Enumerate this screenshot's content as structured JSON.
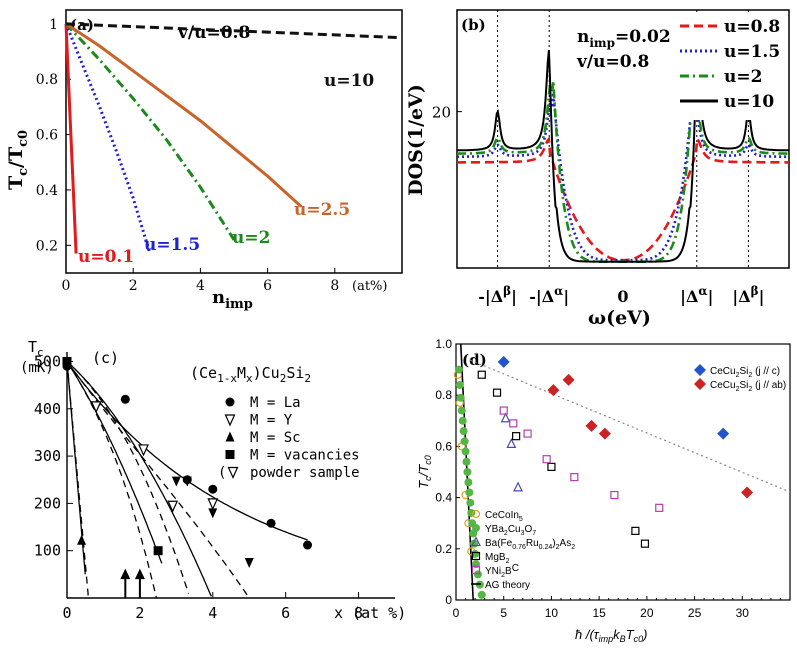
{
  "chart_data": [
    {
      "type": "line",
      "panel_label": "(a)",
      "xlabel": "n",
      "xlabel_sub": "imp",
      "ylabel": "T",
      "ylabel_sub": "c",
      "ylabel_sep": "/T",
      "ylabel_sub2": "c0",
      "x_unit": "(at%)",
      "header": "v/u=0.8",
      "xlim": [
        0,
        10
      ],
      "ylim": [
        0.1,
        1.05
      ],
      "xticks": [
        "0",
        "2",
        "4",
        "6",
        "8"
      ],
      "yticks": [
        "0.2",
        "0.4",
        "0.6",
        "0.8",
        "1"
      ],
      "xtick_values": [
        0,
        2,
        4,
        6,
        8
      ],
      "ytick_values": [
        0.2,
        0.4,
        0.6,
        0.8,
        1.0
      ],
      "series": [
        {
          "name": "u=0.1",
          "color": "#e31a1c",
          "dash": "solid",
          "x": [
            0,
            0.1,
            0.2,
            0.3
          ],
          "y": [
            1.0,
            0.72,
            0.45,
            0.17
          ]
        },
        {
          "name": "u=1.5",
          "color": "#1f1fd6",
          "dash": "dot",
          "x": [
            0,
            0.5,
            1.0,
            1.5,
            2.0,
            2.5
          ],
          "y": [
            1.0,
            0.85,
            0.7,
            0.54,
            0.37,
            0.17
          ]
        },
        {
          "name": "u=2",
          "color": "#1a8a1a",
          "dash": "dashdot",
          "x": [
            0,
            1,
            2,
            3,
            4,
            5
          ],
          "y": [
            1.0,
            0.87,
            0.73,
            0.58,
            0.41,
            0.22
          ]
        },
        {
          "name": "u=2.5",
          "color": "#c8642a",
          "dash": "solid",
          "x": [
            0,
            1,
            2,
            3,
            4,
            5,
            6,
            7
          ],
          "y": [
            1.0,
            0.92,
            0.83,
            0.74,
            0.65,
            0.55,
            0.45,
            0.34
          ]
        },
        {
          "name": "u=10",
          "color": "#111111",
          "dash": "dash",
          "x": [
            0,
            2,
            4,
            6,
            8,
            10
          ],
          "y": [
            1.0,
            0.99,
            0.98,
            0.97,
            0.96,
            0.95
          ]
        }
      ]
    },
    {
      "type": "line",
      "panel_label": "(b)",
      "xlabel": "ω(eV)",
      "ylabel": "DOS(1/eV)",
      "annotation_1": "n",
      "annotation_1_sub": "imp",
      "annotation_1_val": "=0.02",
      "annotation_2": "v/u=0.8",
      "xticks": [
        "-|Δ",
        "-|Δ",
        "0",
        "|Δ",
        "|Δ"
      ],
      "xtick_sups": [
        "β",
        "α",
        "",
        "α",
        "β"
      ],
      "xtick_suffix": "|",
      "xtick_values": [
        -1.7,
        -1.0,
        0,
        1.0,
        1.7
      ],
      "xlim": [
        -2.25,
        2.25
      ],
      "ylim": [
        0,
        33
      ],
      "yticks": [
        "20"
      ],
      "ytick_values": [
        20
      ],
      "series": [
        {
          "name": "u=0.8",
          "color": "#e31a1c",
          "dash": "dash",
          "kind": "low"
        },
        {
          "name": "u=1.5",
          "color": "#1f1fd6",
          "dash": "dot",
          "kind": "mid"
        },
        {
          "name": "u=2",
          "color": "#1a8a1a",
          "dash": "dashdot",
          "kind": "mid2"
        },
        {
          "name": "u=10",
          "color": "#000000",
          "dash": "solid",
          "kind": "high"
        }
      ]
    },
    {
      "type": "scatter",
      "panel_label": "(c)",
      "title": "(Ce",
      "title_sub1": "1-x",
      "title_mid": "M",
      "title_sub2": "x",
      "title_end": ")Cu",
      "title_sub3": "2",
      "title_end2": "Si",
      "title_sub4": "2",
      "ylabel": "T",
      "ylabel_sub": "c",
      "y_unit": "(mK)",
      "xlabel": "x (at %)",
      "xlim": [
        0,
        9
      ],
      "ylim": [
        0,
        520
      ],
      "xticks": [
        "0",
        "2",
        "4",
        "6",
        "8"
      ],
      "xtick_values": [
        0,
        2,
        4,
        6,
        8
      ],
      "yticks": [
        "100",
        "200",
        "300",
        "400",
        "500"
      ],
      "ytick_values": [
        100,
        200,
        300,
        400,
        500
      ],
      "legend": [
        {
          "marker": "circle",
          "label": "M = La"
        },
        {
          "marker": "triangle-down-open",
          "label": "M = Y"
        },
        {
          "marker": "triangle-up",
          "label": "M = Sc"
        },
        {
          "marker": "square",
          "label": "M = vacancies"
        },
        {
          "marker": "triangle-down-open-paren",
          "label": "powder sample"
        }
      ],
      "series": [
        {
          "name": "M = La",
          "marker": "circle",
          "x": [
            0,
            1.6,
            3.3,
            4.0,
            5.6,
            6.6
          ],
          "y": [
            490,
            420,
            250,
            230,
            158,
            112
          ]
        },
        {
          "name": "M = Y",
          "marker": "triangle-down",
          "x": [
            3.0,
            3.3,
            4.0,
            5.0
          ],
          "y": [
            247,
            247,
            180,
            75
          ]
        },
        {
          "name": "M = Sc",
          "marker": "triangle-up",
          "x": [
            0.4
          ],
          "y": [
            122
          ]
        },
        {
          "name": "M = vacancies",
          "marker": "square",
          "x": [
            0,
            2.5
          ],
          "y": [
            500,
            100
          ]
        },
        {
          "name": "powder sample",
          "marker": "triangle-down-open",
          "x": [
            0.8,
            2.1,
            2.9,
            4.0
          ],
          "y": [
            405,
            314,
            195,
            200
          ]
        }
      ],
      "arrows_x": [
        1.6,
        2.0
      ]
    },
    {
      "type": "scatter",
      "panel_label": "(d)",
      "xlabel": "ħ /(τ",
      "xlabel_sub1": "imp",
      "xlabel_mid": "k",
      "xlabel_sub2": "B",
      "xlabel_mid2": "T",
      "xlabel_sub3": "c0",
      "xlabel_end": ")",
      "ylabel": "T",
      "ylabel_sub": "c",
      "ylabel_sep": "/T",
      "ylabel_sub2": "c0",
      "xlim": [
        0,
        35
      ],
      "ylim": [
        0,
        1.0
      ],
      "xticks": [
        "0",
        "5",
        "10",
        "15",
        "20",
        "25",
        "30"
      ],
      "xtick_values": [
        0,
        5,
        10,
        15,
        20,
        25,
        30
      ],
      "yticks": [
        "0",
        "0.2",
        "0.4",
        "0.6",
        "0.8",
        "1.0"
      ],
      "ytick_values": [
        0,
        0.2,
        0.4,
        0.6,
        0.8,
        1.0
      ],
      "legend_top": [
        {
          "label": "CeCu",
          "sub": "2",
          "label2": "Si",
          "sub2": "2",
          "label3": " (j // c)",
          "color": "#2255cc",
          "marker": "diamond"
        },
        {
          "label": "CeCu",
          "sub": "2",
          "label2": "Si",
          "sub2": "2",
          "label3": " (j // ab)",
          "color": "#cc2222",
          "marker": "diamond"
        }
      ],
      "legend_bottom": [
        {
          "text": "CeCoIn",
          "sub": "5",
          "text2": "",
          "marker": "circle-open",
          "color": "#e0a020"
        },
        {
          "text": "YBa",
          "sub": "2",
          "text2": "Cu",
          "sub2": "3",
          "text3": "O",
          "sub3": "7",
          "marker": "circle",
          "color": "#55b545"
        },
        {
          "text": "Ba(Fe",
          "sub": "0.76",
          "text2": "Ru",
          "sub2": "0.24",
          "text3": ")",
          "sub3": "2",
          "text4": "As",
          "sub4": "2",
          "marker": "triangle-open",
          "color": "#4a4ab0"
        },
        {
          "text": "MgB",
          "sub": "2",
          "marker": "square-open",
          "color": "#000000"
        },
        {
          "text": "YNi",
          "sub": "2",
          "text2": "B",
          "sub2": "",
          "text3": "C",
          "marker": "square-open",
          "color": "#b040b0"
        },
        {
          "text": "AG theory",
          "marker": "line",
          "color": "#000000"
        }
      ],
      "series": [
        {
          "name": "CeCu2Si2 (j // c)",
          "color": "#2255cc",
          "marker": "diamond",
          "x": [
            5,
            28
          ],
          "y": [
            0.93,
            0.65
          ]
        },
        {
          "name": "CeCu2Si2 (j // ab)",
          "color": "#cc2222",
          "marker": "diamond",
          "x": [
            10.2,
            11.8,
            14.2,
            15.6,
            30.5
          ],
          "y": [
            0.82,
            0.86,
            0.68,
            0.65,
            0.42
          ]
        },
        {
          "name": "CeCoIn5",
          "color": "#e0a020",
          "marker": "circle-open",
          "x": [
            0.2,
            0.4,
            0.6,
            1.0,
            1.3,
            1.6
          ],
          "y": [
            0.88,
            0.77,
            0.6,
            0.41,
            0.3,
            0.19
          ]
        },
        {
          "name": "YBa2Cu3O7",
          "color": "#55b545",
          "marker": "circle",
          "x": [
            0.3,
            0.4,
            0.5,
            0.6,
            0.7,
            0.8,
            0.9,
            1.0,
            1.1,
            1.2,
            1.3,
            1.4,
            1.5,
            1.6,
            1.7,
            1.8,
            1.9,
            2.0,
            2.1,
            2.3,
            2.5,
            2.7
          ],
          "y": [
            0.9,
            0.84,
            0.79,
            0.74,
            0.7,
            0.66,
            0.62,
            0.58,
            0.54,
            0.5,
            0.46,
            0.42,
            0.38,
            0.34,
            0.3,
            0.26,
            0.22,
            0.18,
            0.14,
            0.1,
            0.06,
            0.02
          ]
        },
        {
          "name": "Ba(Fe0.76Ru0.24)2As2",
          "color": "#4a4ab0",
          "marker": "triangle-open",
          "x": [
            5.2,
            5.8,
            6.5
          ],
          "y": [
            0.71,
            0.61,
            0.44
          ]
        },
        {
          "name": "MgB2",
          "color": "#000000",
          "marker": "square-open",
          "x": [
            2.7,
            4.3,
            6.3,
            10,
            18.8,
            19.8
          ],
          "y": [
            0.88,
            0.81,
            0.64,
            0.52,
            0.27,
            0.22
          ]
        },
        {
          "name": "YNi2B2C",
          "color": "#b040b0",
          "marker": "square-open",
          "x": [
            5.0,
            6.0,
            7.5,
            9.5,
            12.4,
            16.6,
            21.3
          ],
          "y": [
            0.74,
            0.69,
            0.65,
            0.55,
            0.48,
            0.41,
            0.36
          ]
        }
      ]
    }
  ]
}
